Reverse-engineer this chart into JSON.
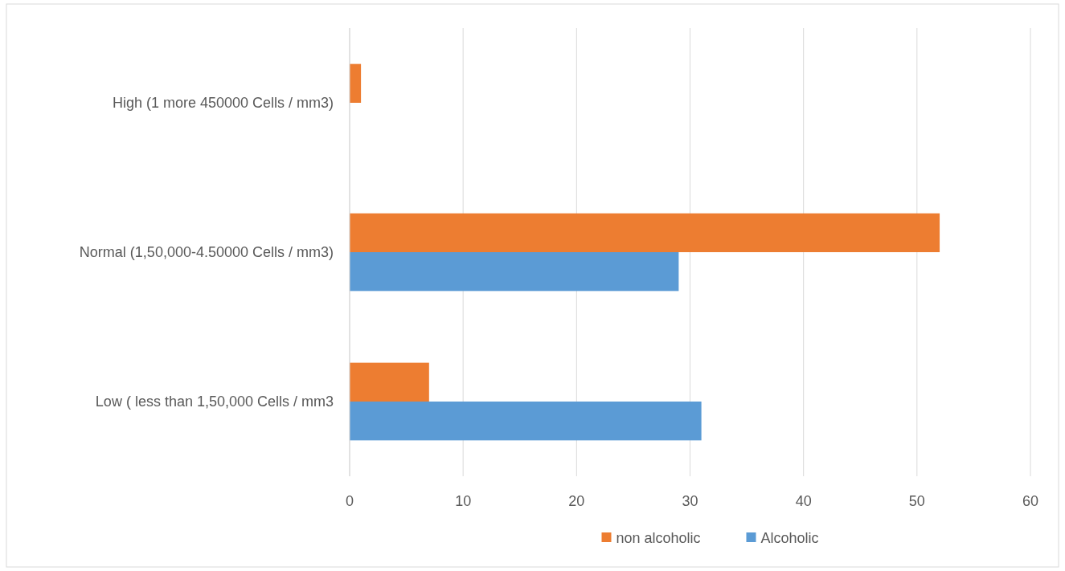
{
  "chart_data": {
    "type": "bar",
    "orientation": "horizontal",
    "categories": [
      "High (1 more 450000 Cells / mm3)",
      "Normal (1,50,000-4.50000 Cells / mm3)",
      "Low ( less than 1,50,000 Cells / mm3"
    ],
    "series": [
      {
        "name": "non alcoholic",
        "color": "#ed7d31",
        "values": [
          1,
          52,
          7
        ]
      },
      {
        "name": "Alcoholic",
        "color": "#5b9bd5",
        "values": [
          0,
          29,
          31
        ]
      }
    ],
    "xlim": [
      0,
      60
    ],
    "xticks": [
      0,
      10,
      20,
      30,
      40,
      50,
      60
    ],
    "grid": "x",
    "legend": "bottom"
  }
}
